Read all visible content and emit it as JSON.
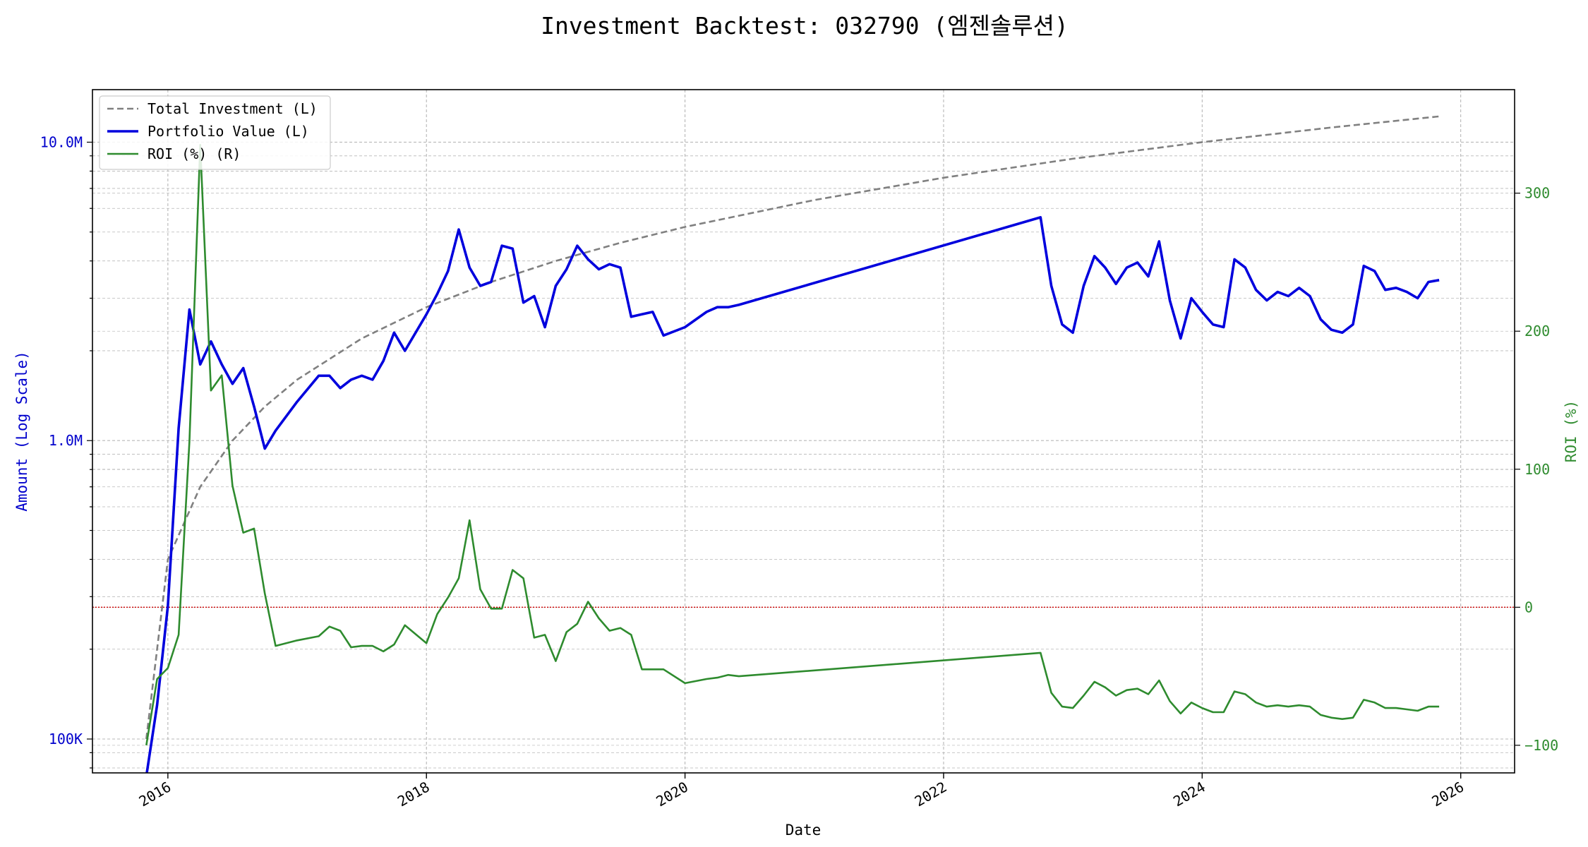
{
  "chart_data": {
    "type": "line",
    "title": "Investment Backtest: 032790 (엠젠솔루션)",
    "xlabel": "Date",
    "ylabel_left": "Amount (Log Scale)",
    "ylabel_right": "ROI (%)",
    "left_scale": "log",
    "xlim": [
      "2015-06-01",
      "2026-06-01"
    ],
    "ylim_left": [
      77000,
      15000000
    ],
    "ylim_right": [
      -120,
      375
    ],
    "grid": true,
    "legend_position": "top-left",
    "x_ticks": [
      {
        "value": "2016-01-01",
        "label": "2016"
      },
      {
        "value": "2018-01-01",
        "label": "2018"
      },
      {
        "value": "2020-01-01",
        "label": "2020"
      },
      {
        "value": "2022-01-01",
        "label": "2022"
      },
      {
        "value": "2024-01-01",
        "label": "2024"
      },
      {
        "value": "2026-01-01",
        "label": "2026"
      }
    ],
    "y_ticks_left": [
      {
        "value": 100000,
        "label": "100K"
      },
      {
        "value": 1000000,
        "label": "1.0M"
      },
      {
        "value": 10000000,
        "label": "10.0M"
      }
    ],
    "y_ticks_right": [
      {
        "value": -100,
        "label": "−100"
      },
      {
        "value": 0,
        "label": "0"
      },
      {
        "value": 100,
        "label": "100"
      },
      {
        "value": 200,
        "label": "200"
      },
      {
        "value": 300,
        "label": "300"
      }
    ],
    "reference_line": {
      "axis": "right",
      "value": 0,
      "color": "#cc0000"
    },
    "x": [
      "2015-11-01",
      "2015-12-01",
      "2016-01-01",
      "2016-02-01",
      "2016-03-01",
      "2016-04-01",
      "2016-05-01",
      "2016-06-01",
      "2016-07-01",
      "2016-08-01",
      "2016-09-01",
      "2016-10-01",
      "2016-11-01",
      "2017-01-01",
      "2017-03-01",
      "2017-04-01",
      "2017-05-01",
      "2017-06-01",
      "2017-07-01",
      "2017-08-01",
      "2017-09-01",
      "2017-10-01",
      "2017-11-01",
      "2018-01-01",
      "2018-02-01",
      "2018-03-01",
      "2018-04-01",
      "2018-05-01",
      "2018-06-01",
      "2018-07-01",
      "2018-08-01",
      "2018-09-01",
      "2018-10-01",
      "2018-11-01",
      "2018-12-01",
      "2019-01-01",
      "2019-02-01",
      "2019-03-01",
      "2019-04-01",
      "2019-05-01",
      "2019-06-01",
      "2019-07-01",
      "2019-08-01",
      "2019-09-01",
      "2019-10-01",
      "2019-11-01",
      "2020-01-01",
      "2020-03-01",
      "2020-04-01",
      "2020-05-01",
      "2020-06-01",
      "2022-10-01",
      "2022-11-01",
      "2022-12-01",
      "2023-01-01",
      "2023-02-01",
      "2023-03-01",
      "2023-04-01",
      "2023-05-01",
      "2023-06-01",
      "2023-07-01",
      "2023-08-01",
      "2023-09-01",
      "2023-10-01",
      "2023-11-01",
      "2023-12-01",
      "2024-01-01",
      "2024-02-01",
      "2024-03-01",
      "2024-04-01",
      "2024-05-01",
      "2024-06-01",
      "2024-07-01",
      "2024-08-01",
      "2024-09-01",
      "2024-10-01",
      "2024-11-01",
      "2024-12-01",
      "2025-01-01",
      "2025-02-01",
      "2025-03-01",
      "2025-04-01",
      "2025-05-01",
      "2025-06-01",
      "2025-07-01",
      "2025-08-01",
      "2025-09-01",
      "2025-10-01",
      "2025-11-01"
    ],
    "series": [
      {
        "name": "Total Investment (L)",
        "axis": "left",
        "color": "#808080",
        "style": "dashed",
        "x": [
          "2015-11-01",
          "2016-01-01",
          "2016-04-01",
          "2016-07-01",
          "2016-10-01",
          "2017-01-01",
          "2017-07-01",
          "2018-01-01",
          "2018-07-01",
          "2019-01-01",
          "2019-07-01",
          "2020-01-01",
          "2021-01-01",
          "2022-01-01",
          "2023-01-01",
          "2024-01-01",
          "2025-01-01",
          "2025-11-01"
        ],
        "values": [
          100000,
          400000,
          700000,
          1000000,
          1300000,
          1600000,
          2200000,
          2800000,
          3400000,
          4000000,
          4600000,
          5200000,
          6400000,
          7600000,
          8800000,
          10000000,
          11200000,
          12200000
        ]
      },
      {
        "name": "Portfolio Value (L)",
        "axis": "left",
        "color": "#0000dd",
        "style": "solid",
        "values": [
          75000,
          130000,
          280000,
          1100000,
          2750000,
          1800000,
          2150000,
          1800000,
          1550000,
          1750000,
          1300000,
          940000,
          1080000,
          1350000,
          1650000,
          1650000,
          1500000,
          1600000,
          1650000,
          1600000,
          1850000,
          2300000,
          2000000,
          2650000,
          3100000,
          3700000,
          5100000,
          3800000,
          3300000,
          3400000,
          4500000,
          4400000,
          2900000,
          3050000,
          2400000,
          3300000,
          3750000,
          4500000,
          4050000,
          3750000,
          3900000,
          3800000,
          2600000,
          2650000,
          2700000,
          2250000,
          2400000,
          2700000,
          2800000,
          2800000,
          2850000,
          5600000,
          3300000,
          2450000,
          2300000,
          3300000,
          4150000,
          3800000,
          3350000,
          3800000,
          3950000,
          3550000,
          4650000,
          2950000,
          2200000,
          3000000,
          2700000,
          2450000,
          2400000,
          4050000,
          3800000,
          3200000,
          2950000,
          3150000,
          3050000,
          3250000,
          3050000,
          2550000,
          2350000,
          2300000,
          2450000,
          3850000,
          3700000,
          3200000,
          3250000,
          3150000,
          3000000,
          3400000,
          3450000
        ]
      },
      {
        "name": "ROI (%) (R)",
        "axis": "right",
        "color": "#2e8b2e",
        "style": "solid",
        "values": [
          -100,
          -52,
          -44,
          -20,
          120,
          335,
          157,
          168,
          88,
          54,
          57,
          10,
          -28,
          -24,
          -21,
          -14,
          -17,
          -29,
          -28,
          -28,
          -32,
          -27,
          -13,
          -26,
          -5,
          7,
          21,
          63,
          13,
          -1,
          -1,
          27,
          21,
          -22,
          -20,
          -39,
          -18,
          -12,
          4,
          -8,
          -17,
          -15,
          -20,
          -45,
          -45,
          -45,
          -55,
          -52,
          -51,
          -49,
          -50,
          -33,
          -62,
          -72,
          -73,
          -64,
          -54,
          -58,
          -64,
          -60,
          -59,
          -63,
          -53,
          -68,
          -77,
          -69,
          -73,
          -76,
          -76,
          -61,
          -63,
          -69,
          -72,
          -71,
          -72,
          -71,
          -72,
          -78,
          -80,
          -81,
          -80,
          -67,
          -69,
          -73,
          -73,
          -74,
          -75,
          -72,
          -72
        ]
      }
    ]
  }
}
